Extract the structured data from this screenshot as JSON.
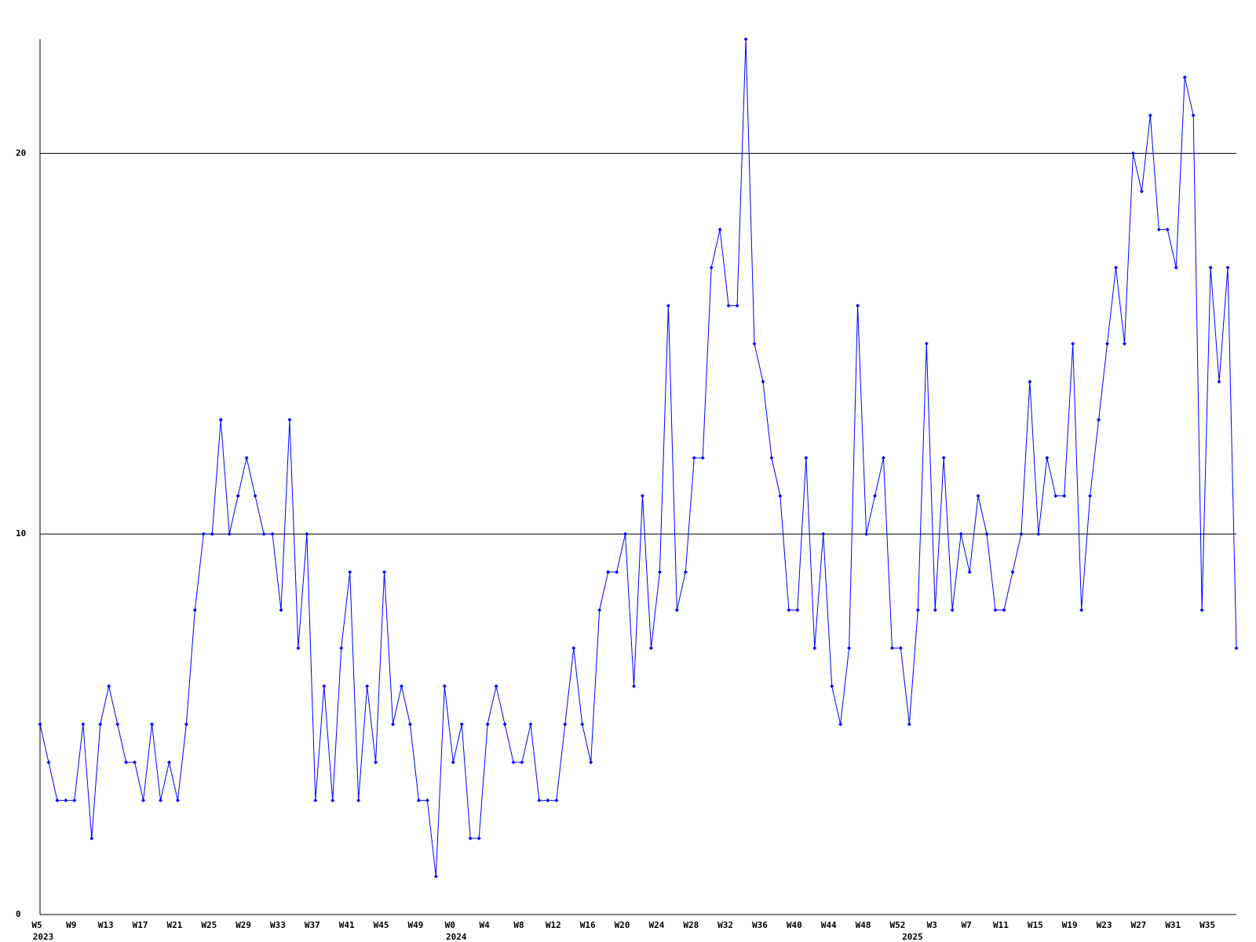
{
  "chart_data": {
    "type": "line",
    "categories": [
      "W5",
      null,
      null,
      null,
      "W9",
      null,
      null,
      null,
      "W13",
      null,
      null,
      null,
      "W17",
      null,
      null,
      null,
      "W21",
      null,
      null,
      null,
      "W25",
      null,
      null,
      null,
      "W29",
      null,
      null,
      null,
      "W33",
      null,
      null,
      null,
      "W37",
      null,
      null,
      null,
      "W41",
      null,
      null,
      null,
      "W45",
      null,
      null,
      null,
      "W49",
      null,
      null,
      null,
      "W0",
      null,
      null,
      null,
      "W4",
      null,
      null,
      null,
      "W8",
      null,
      null,
      null,
      "W12",
      null,
      null,
      null,
      "W16",
      null,
      null,
      null,
      "W20",
      null,
      null,
      null,
      "W24",
      null,
      null,
      null,
      "W28",
      null,
      null,
      null,
      "W32",
      null,
      null,
      null,
      "W36",
      null,
      null,
      null,
      "W40",
      null,
      null,
      null,
      "W44",
      null,
      null,
      null,
      "W48",
      null,
      null,
      null,
      "W52",
      null,
      null,
      null,
      "W3",
      null,
      null,
      null,
      "W7",
      null,
      null,
      null,
      "W11",
      null,
      null,
      null,
      "W15",
      null,
      null,
      null,
      "W19",
      null,
      null,
      null,
      "W23",
      null,
      null,
      null,
      "W27",
      null,
      null,
      null,
      "W31",
      null,
      null,
      null,
      "W35",
      null,
      null,
      null
    ],
    "years": [
      "2023",
      null,
      null,
      null,
      null,
      null,
      null,
      null,
      null,
      null,
      null,
      null,
      null,
      null,
      null,
      null,
      null,
      null,
      null,
      null,
      null,
      null,
      null,
      null,
      null,
      null,
      null,
      null,
      null,
      null,
      null,
      null,
      null,
      null,
      null,
      null,
      null,
      null,
      null,
      null,
      null,
      null,
      null,
      null,
      null,
      null,
      null,
      null,
      "2024",
      null,
      null,
      null,
      null,
      null,
      null,
      null,
      null,
      null,
      null,
      null,
      null,
      null,
      null,
      null,
      null,
      null,
      null,
      null,
      null,
      null,
      null,
      null,
      null,
      null,
      null,
      null,
      null,
      null,
      null,
      null,
      null,
      null,
      null,
      null,
      null,
      null,
      null,
      null,
      null,
      null,
      null,
      null,
      null,
      null,
      null,
      null,
      null,
      null,
      null,
      null,
      null,
      "2025",
      null,
      null,
      null,
      null,
      null,
      null,
      null,
      null,
      null,
      null,
      null,
      null,
      null,
      null,
      null,
      null,
      null,
      null,
      null,
      null,
      null,
      null,
      null,
      null,
      null,
      null,
      null,
      null,
      null,
      null,
      null,
      null,
      null,
      null,
      null,
      null,
      null,
      null
    ],
    "series": [
      {
        "color": "#0000ff",
        "values": [
          5,
          4,
          3,
          3,
          3,
          5,
          2,
          5,
          6,
          5,
          4,
          4,
          3,
          5,
          3,
          4,
          3,
          5,
          8,
          10,
          10,
          13,
          10,
          11,
          12,
          11,
          10,
          10,
          8,
          13,
          7,
          10,
          3,
          6,
          3,
          7,
          9,
          3,
          6,
          4,
          9,
          5,
          6,
          5,
          3,
          3,
          1,
          6,
          4,
          5,
          2,
          2,
          5,
          6,
          5,
          4,
          4,
          5,
          3,
          3,
          3,
          5,
          7,
          5,
          4,
          8,
          9,
          9,
          10,
          6,
          11,
          7,
          9,
          16,
          8,
          9,
          12,
          12,
          17,
          18,
          16,
          16,
          23,
          15,
          14,
          12,
          11,
          8,
          8,
          12,
          7,
          10,
          6,
          5,
          7,
          16,
          10,
          11,
          12,
          7,
          7,
          5,
          8,
          15,
          8,
          12,
          8,
          10,
          9,
          11,
          10,
          8,
          8,
          9,
          10,
          14,
          10,
          12,
          11,
          11,
          15,
          8,
          11,
          13,
          15,
          17,
          15,
          20,
          19,
          21,
          18,
          18,
          17,
          22,
          21,
          8,
          17,
          14,
          17,
          7
        ]
      }
    ],
    "ylim": [
      0,
      23
    ],
    "yticks": [
      0,
      10,
      20
    ],
    "grid": true
  }
}
